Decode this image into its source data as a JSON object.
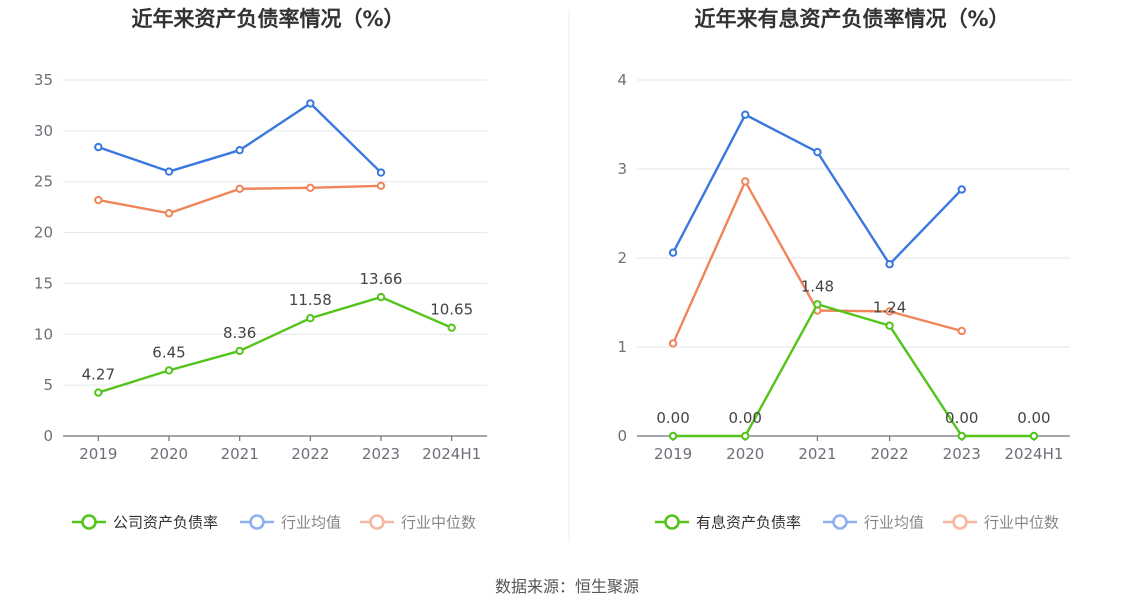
{
  "source_text": "数据来源：恒生聚源",
  "chart_data": [
    {
      "type": "line",
      "title": "近年来资产负债率情况（%）",
      "categories": [
        "2019",
        "2020",
        "2021",
        "2022",
        "2023",
        "2024H1"
      ],
      "ylim": [
        0,
        35
      ],
      "yticks": [
        0,
        5,
        10,
        15,
        20,
        25,
        30,
        35
      ],
      "grid": true,
      "legend_position": "bottom",
      "series": [
        {
          "name": "公司资产负债率",
          "color": "#52c41a",
          "labels": true,
          "values": [
            4.27,
            6.45,
            8.36,
            11.58,
            13.66,
            10.65
          ],
          "value_labels": [
            "4.27",
            "6.45",
            "8.36",
            "11.58",
            "13.66",
            "10.65"
          ]
        },
        {
          "name": "行业均值",
          "color": "#3a78e0",
          "labels": false,
          "values": [
            28.4,
            26.0,
            28.1,
            32.7,
            25.9,
            null
          ]
        },
        {
          "name": "行业中位数",
          "color": "#f0845a",
          "labels": false,
          "values": [
            23.2,
            21.9,
            24.3,
            24.4,
            24.6,
            null
          ]
        }
      ]
    },
    {
      "type": "line",
      "title": "近年来有息资产负债率情况（%）",
      "categories": [
        "2019",
        "2020",
        "2021",
        "2022",
        "2023",
        "2024H1"
      ],
      "ylim": [
        0,
        4
      ],
      "yticks": [
        0,
        1,
        2,
        3,
        4
      ],
      "grid": true,
      "legend_position": "bottom",
      "series": [
        {
          "name": "有息资产负债率",
          "color": "#52c41a",
          "labels": true,
          "values": [
            0.0,
            0.0,
            1.48,
            1.24,
            0.0,
            0.0
          ],
          "value_labels": [
            "0.00",
            "0.00",
            "1.48",
            "1.24",
            "0.00",
            "0.00"
          ]
        },
        {
          "name": "行业均值",
          "color": "#3a78e0",
          "labels": false,
          "values": [
            2.06,
            3.61,
            3.19,
            1.93,
            2.77,
            null
          ]
        },
        {
          "name": "行业中位数",
          "color": "#f0845a",
          "labels": false,
          "values": [
            1.04,
            2.86,
            1.41,
            1.4,
            1.18,
            null
          ]
        }
      ]
    }
  ]
}
